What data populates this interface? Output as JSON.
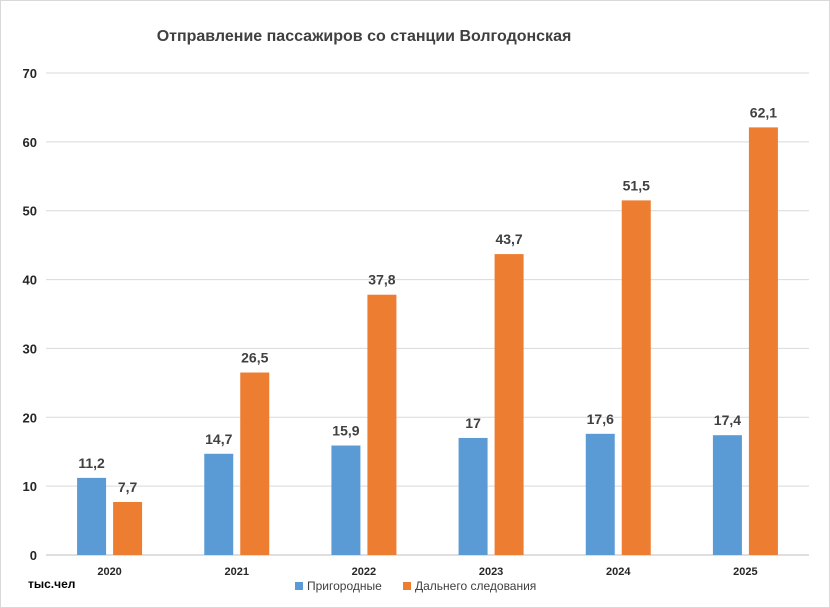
{
  "chart_data": {
    "type": "bar",
    "title": "Отправление пассажиров со станции Волгодонская",
    "categories": [
      "2020",
      "2021",
      "2022",
      "2023",
      "2024",
      "2025"
    ],
    "series": [
      {
        "name": "Пригородные",
        "color": "#5b9bd5",
        "values": [
          11.2,
          14.7,
          15.9,
          17,
          17.6,
          17.4
        ],
        "labels": [
          "11,2",
          "14,7",
          "15,9",
          "17",
          "17,6",
          "17,4"
        ]
      },
      {
        "name": "Дальнего следования",
        "color": "#ed7d31",
        "values": [
          7.7,
          26.5,
          37.8,
          43.7,
          51.5,
          62.1
        ],
        "labels": [
          "7,7",
          "26,5",
          "37,8",
          "43,7",
          "51,5",
          "62,1"
        ]
      }
    ],
    "ylim": [
      0,
      70
    ],
    "yticks": [
      "0",
      "10",
      "20",
      "30",
      "40",
      "50",
      "60",
      "70"
    ],
    "grid": true,
    "legend": "bottom",
    "xlabel": "",
    "ylabel": "",
    "unit_label": "тыс.чел"
  }
}
